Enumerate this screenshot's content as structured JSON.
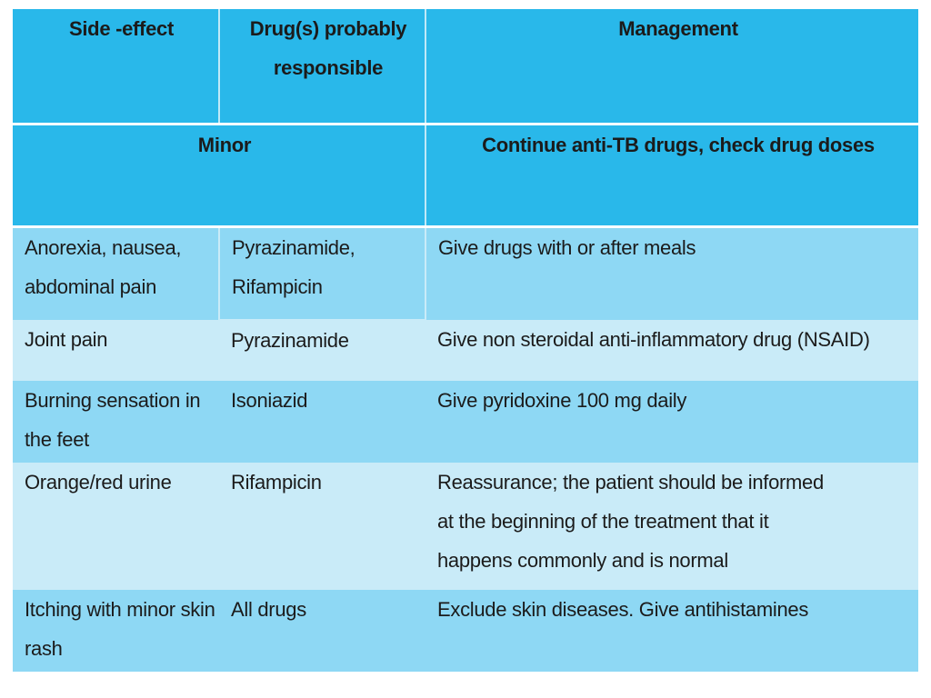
{
  "header": {
    "col_side_effect": "Side -effect",
    "col_drugs": "Drug(s) probably responsible",
    "col_management": "Management"
  },
  "subheader": {
    "category": "Minor",
    "action": "Continue anti-TB drugs, check drug doses"
  },
  "rows": [
    {
      "side_effect": "Anorexia, nausea, abdominal pain",
      "drugs": "Pyrazinamide, Rifampicin",
      "management": "Give drugs with or after meals"
    },
    {
      "side_effect": "Joint pain",
      "drugs": "Pyrazinamide",
      "management": "Give non steroidal anti-inflammatory drug (NSAID)"
    },
    {
      "side_effect": "Burning sensation in the feet",
      "drugs": "Isoniazid",
      "management": "Give pyridoxine 100 mg daily"
    },
    {
      "side_effect": "Orange/red urine",
      "drugs": "Rifampicin",
      "management": "Reassurance; the patient should be informed at the beginning of the treatment that it happens commonly and is normal"
    },
    {
      "side_effect": "Itching with minor skin rash",
      "drugs": "All drugs",
      "management": "Exclude skin diseases. Give antihistamines"
    }
  ],
  "colors": {
    "header_bg": "#29b8ea",
    "row_dark": "#8ed8f4",
    "row_light": "#c9ebf8",
    "header_text": "#ffffff"
  }
}
